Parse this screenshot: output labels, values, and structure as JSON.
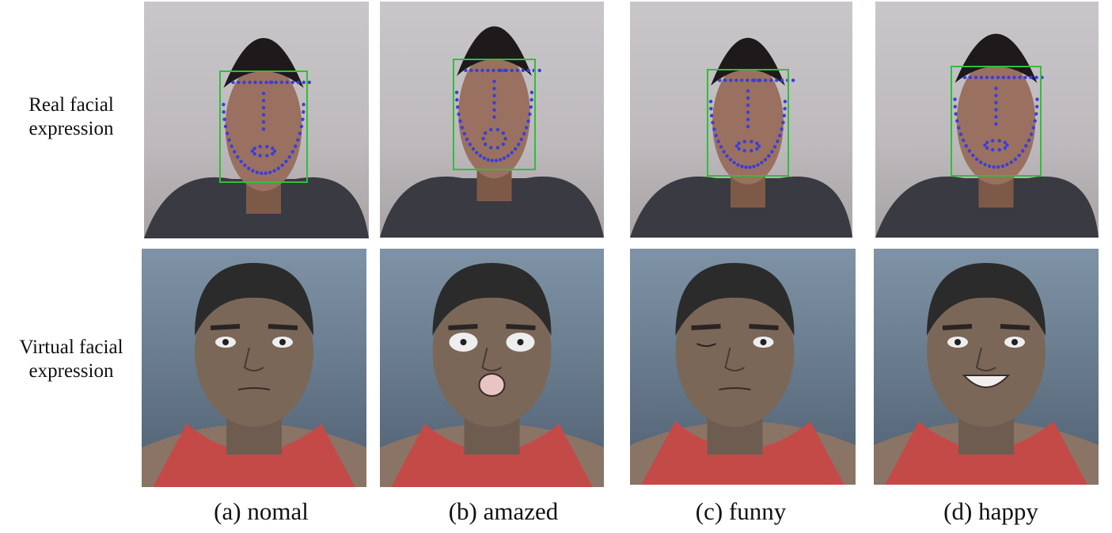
{
  "row_labels": {
    "real": [
      "Real facial",
      "expression"
    ],
    "virtual": [
      "Virtual facial",
      "expression"
    ]
  },
  "captions": [
    "(a) nomal",
    "(b) amazed",
    "(c) funny",
    "(d) happy"
  ],
  "expressions": [
    "normal",
    "amazed",
    "funny",
    "happy"
  ],
  "colors": {
    "bounding_box": "#2fbf3a",
    "landmarks": "#3a3fd8",
    "shirt": "#c44a48",
    "skin_virtual": "#7a6758"
  }
}
